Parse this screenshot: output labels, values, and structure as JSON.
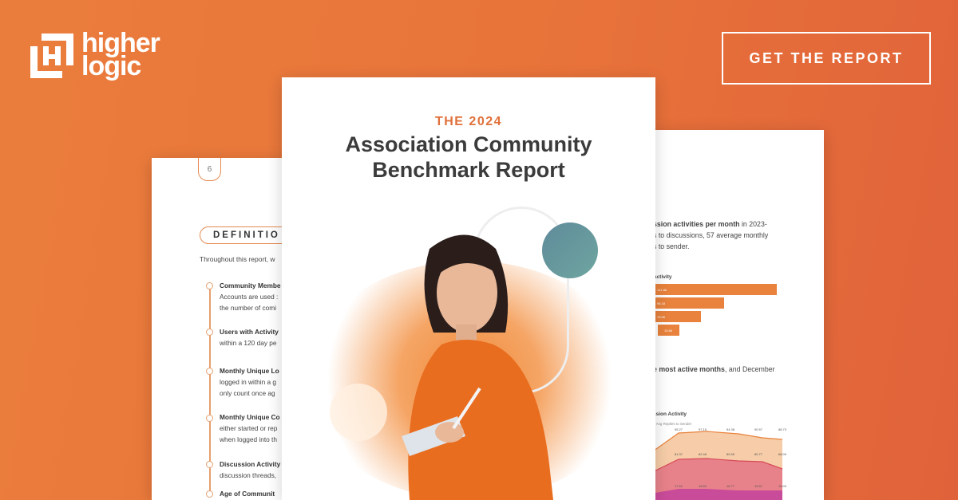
{
  "brand": {
    "logo_text_line1": "higher",
    "logo_text_line2": "logic",
    "accent": "#e8763a"
  },
  "cta": {
    "label": "GET THE REPORT"
  },
  "cover": {
    "eyebrow": "THE 2024",
    "title_line1": "Association Community",
    "title_line2": "Benchmark Report"
  },
  "left_page": {
    "page_number": "6",
    "section_heading": "DEFINITIO",
    "intro": "Throughout this report, w",
    "definitions": [
      {
        "bold": "Community Membe",
        "lines": [
          "Accounts are used :",
          "the number of comi"
        ],
        "bold2": "Accounts"
      },
      {
        "bold": "Users with Activity",
        "lines": [
          "within a 120 day pe"
        ]
      },
      {
        "bold": "Monthly Unique Lo",
        "lines": [
          "logged in within a g",
          "only count once ag"
        ]
      },
      {
        "bold": "Monthly Unique Co",
        "lines": [
          "either started or rep",
          "when logged into th"
        ]
      },
      {
        "bold": "Discussion Activity",
        "lines": [
          "discussion threads,"
        ]
      },
      {
        "bold": "Age of Communit",
        "lines": []
      }
    ]
  },
  "right_page": {
    "para1_bold": "ssion activities per month",
    "para1_rest": " in 2023-",
    "para1_line2": "s to discussions, 57 average monthly",
    "para1_line3": "s to sender.",
    "bar_chart_title": "Activity",
    "bar_values": [
      "141.86",
      "98.18",
      "78.56",
      "15.86"
    ],
    "bar_fractions": [
      1,
      0.58,
      0.4,
      0.17
    ],
    "para2_bold": "e most active months",
    "para2_rest": ", and December",
    "area_chart_title": "ssion Activity",
    "area_legend": "Avg Replies to Sender",
    "area_labels_top": [
      "95.27",
      "97.15",
      "94.38",
      "90.57",
      "88.73"
    ],
    "area_labels_mid": [
      "81.37",
      "82.48",
      "80.55",
      "80.77",
      "68.09"
    ],
    "area_labels_bottom": [
      "17.61",
      "18.53",
      "16.77",
      "15.57",
      "15.03"
    ]
  }
}
